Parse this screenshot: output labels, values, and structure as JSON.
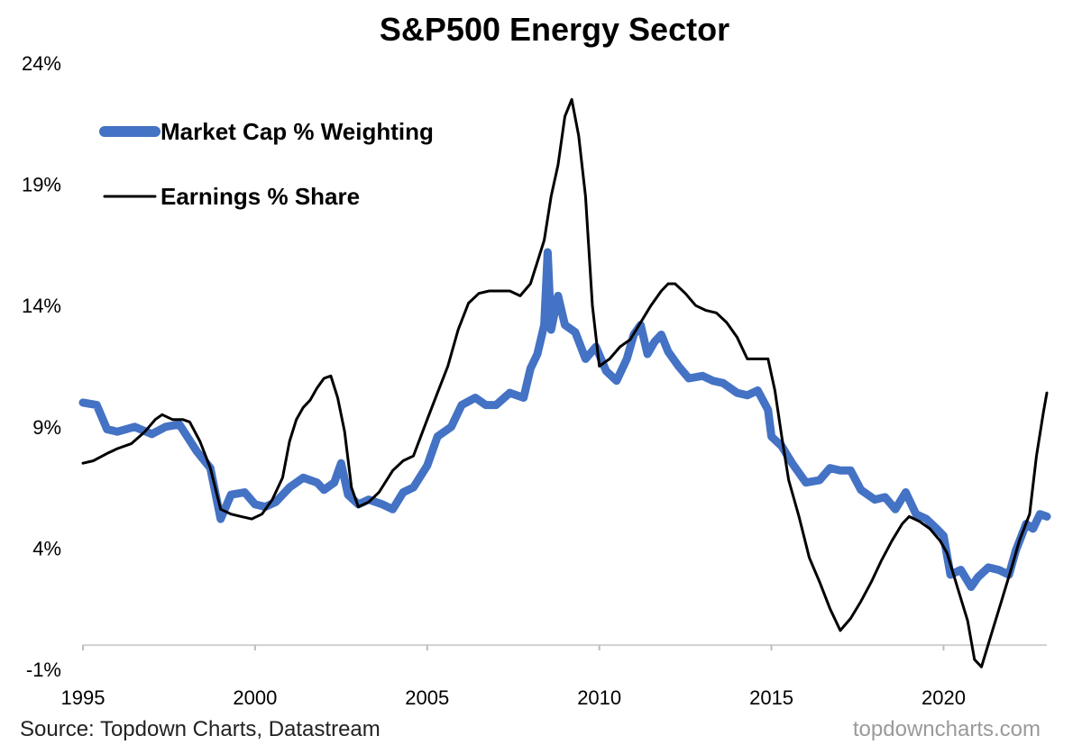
{
  "chart_data": {
    "type": "line",
    "title": "S&P500 Energy Sector",
    "source": "Source: Topdown Charts, Datastream",
    "watermark": "topdowncharts.com",
    "xlim": [
      1995,
      2023
    ],
    "ylim": [
      -1,
      24
    ],
    "yticks": [
      -1,
      4,
      9,
      14,
      19,
      24
    ],
    "ytick_labels": [
      "-1%",
      "4%",
      "9%",
      "14%",
      "19%",
      "24%"
    ],
    "xticks": [
      1995,
      2000,
      2005,
      2010,
      2015,
      2020
    ],
    "xtick_labels": [
      "1995",
      "2000",
      "2005",
      "2010",
      "2015",
      "2020"
    ],
    "grid": false,
    "legend_position": "top-left",
    "series": [
      {
        "name": "Market Cap % Weighting",
        "color": "#4472C4",
        "line_width": "thick",
        "points": [
          [
            1995.0,
            10.0
          ],
          [
            1995.4,
            9.9
          ],
          [
            1995.7,
            8.9
          ],
          [
            1996.0,
            8.8
          ],
          [
            1996.5,
            9.0
          ],
          [
            1997.0,
            8.7
          ],
          [
            1997.4,
            9.0
          ],
          [
            1997.8,
            9.1
          ],
          [
            1998.3,
            8.0
          ],
          [
            1998.7,
            7.3
          ],
          [
            1999.0,
            5.2
          ],
          [
            1999.3,
            6.2
          ],
          [
            1999.7,
            6.3
          ],
          [
            2000.0,
            5.8
          ],
          [
            2000.3,
            5.7
          ],
          [
            2000.6,
            5.9
          ],
          [
            2001.0,
            6.5
          ],
          [
            2001.4,
            6.9
          ],
          [
            2001.8,
            6.7
          ],
          [
            2002.0,
            6.4
          ],
          [
            2002.3,
            6.7
          ],
          [
            2002.5,
            7.5
          ],
          [
            2002.7,
            6.2
          ],
          [
            2003.0,
            5.8
          ],
          [
            2003.3,
            6.0
          ],
          [
            2003.7,
            5.8
          ],
          [
            2004.0,
            5.6
          ],
          [
            2004.3,
            6.3
          ],
          [
            2004.6,
            6.5
          ],
          [
            2005.0,
            7.4
          ],
          [
            2005.3,
            8.6
          ],
          [
            2005.7,
            9.0
          ],
          [
            2006.0,
            9.9
          ],
          [
            2006.4,
            10.2
          ],
          [
            2006.7,
            9.9
          ],
          [
            2007.0,
            9.9
          ],
          [
            2007.4,
            10.4
          ],
          [
            2007.8,
            10.2
          ],
          [
            2008.0,
            11.4
          ],
          [
            2008.2,
            12.0
          ],
          [
            2008.4,
            13.2
          ],
          [
            2008.5,
            16.2
          ],
          [
            2008.6,
            13.0
          ],
          [
            2008.8,
            14.4
          ],
          [
            2009.0,
            13.2
          ],
          [
            2009.3,
            12.9
          ],
          [
            2009.6,
            11.8
          ],
          [
            2009.9,
            12.3
          ],
          [
            2010.2,
            11.3
          ],
          [
            2010.5,
            10.9
          ],
          [
            2010.8,
            11.8
          ],
          [
            2011.0,
            12.8
          ],
          [
            2011.2,
            13.2
          ],
          [
            2011.4,
            12.0
          ],
          [
            2011.6,
            12.5
          ],
          [
            2011.8,
            12.8
          ],
          [
            2012.0,
            12.1
          ],
          [
            2012.3,
            11.5
          ],
          [
            2012.6,
            11.0
          ],
          [
            2013.0,
            11.1
          ],
          [
            2013.3,
            10.9
          ],
          [
            2013.6,
            10.8
          ],
          [
            2014.0,
            10.4
          ],
          [
            2014.3,
            10.3
          ],
          [
            2014.6,
            10.5
          ],
          [
            2014.9,
            9.7
          ],
          [
            2015.0,
            8.6
          ],
          [
            2015.3,
            8.2
          ],
          [
            2015.6,
            7.5
          ],
          [
            2016.0,
            6.7
          ],
          [
            2016.4,
            6.8
          ],
          [
            2016.7,
            7.3
          ],
          [
            2017.0,
            7.2
          ],
          [
            2017.3,
            7.2
          ],
          [
            2017.6,
            6.4
          ],
          [
            2018.0,
            6.0
          ],
          [
            2018.3,
            6.1
          ],
          [
            2018.6,
            5.6
          ],
          [
            2018.9,
            6.3
          ],
          [
            2019.2,
            5.4
          ],
          [
            2019.5,
            5.2
          ],
          [
            2019.8,
            4.8
          ],
          [
            2020.0,
            4.5
          ],
          [
            2020.2,
            2.9
          ],
          [
            2020.5,
            3.1
          ],
          [
            2020.8,
            2.4
          ],
          [
            2021.0,
            2.8
          ],
          [
            2021.3,
            3.2
          ],
          [
            2021.6,
            3.1
          ],
          [
            2021.9,
            2.9
          ],
          [
            2022.1,
            3.9
          ],
          [
            2022.4,
            5.0
          ],
          [
            2022.6,
            4.8
          ],
          [
            2022.8,
            5.4
          ],
          [
            2023.0,
            5.3
          ]
        ]
      },
      {
        "name": "Earnings % Share",
        "color": "#000000",
        "line_width": "thin",
        "points": [
          [
            1995.0,
            7.5
          ],
          [
            1995.3,
            7.6
          ],
          [
            1995.7,
            7.9
          ],
          [
            1996.0,
            8.1
          ],
          [
            1996.4,
            8.3
          ],
          [
            1996.8,
            8.8
          ],
          [
            1997.1,
            9.3
          ],
          [
            1997.3,
            9.5
          ],
          [
            1997.6,
            9.3
          ],
          [
            1997.9,
            9.3
          ],
          [
            1998.1,
            9.2
          ],
          [
            1998.4,
            8.4
          ],
          [
            1998.7,
            7.3
          ],
          [
            1999.0,
            5.6
          ],
          [
            1999.3,
            5.4
          ],
          [
            1999.6,
            5.3
          ],
          [
            1999.9,
            5.2
          ],
          [
            2000.2,
            5.4
          ],
          [
            2000.5,
            6.0
          ],
          [
            2000.8,
            6.9
          ],
          [
            2001.0,
            8.4
          ],
          [
            2001.2,
            9.3
          ],
          [
            2001.4,
            9.8
          ],
          [
            2001.6,
            10.1
          ],
          [
            2001.8,
            10.6
          ],
          [
            2002.0,
            11.0
          ],
          [
            2002.2,
            11.1
          ],
          [
            2002.4,
            10.2
          ],
          [
            2002.6,
            8.8
          ],
          [
            2002.8,
            6.5
          ],
          [
            2003.0,
            5.7
          ],
          [
            2003.3,
            5.9
          ],
          [
            2003.6,
            6.3
          ],
          [
            2004.0,
            7.2
          ],
          [
            2004.3,
            7.6
          ],
          [
            2004.6,
            7.8
          ],
          [
            2005.0,
            9.3
          ],
          [
            2005.3,
            10.4
          ],
          [
            2005.6,
            11.5
          ],
          [
            2005.9,
            13.0
          ],
          [
            2006.2,
            14.1
          ],
          [
            2006.5,
            14.5
          ],
          [
            2006.8,
            14.6
          ],
          [
            2007.1,
            14.6
          ],
          [
            2007.4,
            14.6
          ],
          [
            2007.7,
            14.4
          ],
          [
            2008.0,
            14.9
          ],
          [
            2008.2,
            15.8
          ],
          [
            2008.4,
            16.7
          ],
          [
            2008.6,
            18.5
          ],
          [
            2008.8,
            19.8
          ],
          [
            2009.0,
            21.8
          ],
          [
            2009.2,
            22.5
          ],
          [
            2009.4,
            21.0
          ],
          [
            2009.6,
            18.5
          ],
          [
            2009.8,
            14.0
          ],
          [
            2010.0,
            11.5
          ],
          [
            2010.3,
            11.8
          ],
          [
            2010.6,
            12.3
          ],
          [
            2010.9,
            12.6
          ],
          [
            2011.2,
            13.3
          ],
          [
            2011.5,
            14.0
          ],
          [
            2011.8,
            14.6
          ],
          [
            2012.0,
            14.9
          ],
          [
            2012.2,
            14.9
          ],
          [
            2012.5,
            14.5
          ],
          [
            2012.8,
            14.0
          ],
          [
            2013.1,
            13.8
          ],
          [
            2013.4,
            13.7
          ],
          [
            2013.7,
            13.3
          ],
          [
            2014.0,
            12.7
          ],
          [
            2014.3,
            11.8
          ],
          [
            2014.6,
            11.8
          ],
          [
            2014.9,
            11.8
          ],
          [
            2015.1,
            10.5
          ],
          [
            2015.3,
            8.6
          ],
          [
            2015.5,
            6.8
          ],
          [
            2015.8,
            5.3
          ],
          [
            2016.1,
            3.6
          ],
          [
            2016.4,
            2.6
          ],
          [
            2016.7,
            1.5
          ],
          [
            2017.0,
            0.6
          ],
          [
            2017.3,
            1.1
          ],
          [
            2017.6,
            1.8
          ],
          [
            2017.9,
            2.6
          ],
          [
            2018.2,
            3.5
          ],
          [
            2018.5,
            4.3
          ],
          [
            2018.8,
            5.0
          ],
          [
            2019.0,
            5.3
          ],
          [
            2019.3,
            5.1
          ],
          [
            2019.6,
            4.8
          ],
          [
            2019.9,
            4.3
          ],
          [
            2020.1,
            3.8
          ],
          [
            2020.4,
            2.4
          ],
          [
            2020.7,
            1.0
          ],
          [
            2020.9,
            -0.6
          ],
          [
            2021.1,
            -0.9
          ],
          [
            2021.4,
            0.5
          ],
          [
            2021.7,
            1.9
          ],
          [
            2022.0,
            3.3
          ],
          [
            2022.2,
            4.3
          ],
          [
            2022.5,
            5.4
          ],
          [
            2022.7,
            7.8
          ],
          [
            2022.9,
            9.6
          ],
          [
            2023.0,
            10.4
          ]
        ]
      }
    ]
  }
}
